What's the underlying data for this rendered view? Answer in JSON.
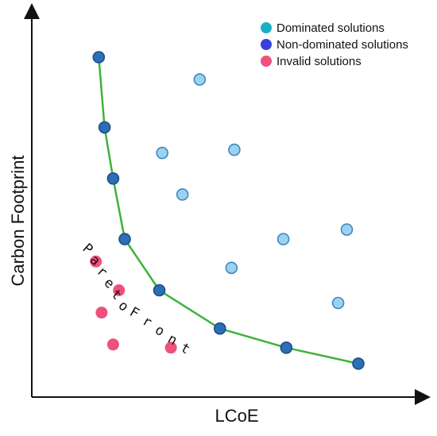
{
  "chart_data": {
    "type": "scatter",
    "title": "",
    "xlabel": "LCoE",
    "ylabel": "Carbon Footprint",
    "grid": false,
    "legend_position": "top-right",
    "front_label": "Pareto Front",
    "series": [
      {
        "name": "Dominated solutions",
        "legend_color": "#1ab0c4",
        "color": "#9cd2ee",
        "stroke": "#3e88c3",
        "points": [
          [
            0.45,
            0.93
          ],
          [
            0.32,
            0.7
          ],
          [
            0.57,
            0.71
          ],
          [
            0.39,
            0.57
          ],
          [
            0.74,
            0.43
          ],
          [
            0.96,
            0.46
          ],
          [
            0.56,
            0.34
          ],
          [
            0.93,
            0.23
          ]
        ]
      },
      {
        "name": "Non-dominated solutions",
        "legend_color": "#3b3fdc",
        "color": "#2c6fb6",
        "stroke": "#1c4f8a",
        "points": [
          [
            0.1,
            1.0
          ],
          [
            0.12,
            0.78
          ],
          [
            0.15,
            0.62
          ],
          [
            0.19,
            0.43
          ],
          [
            0.31,
            0.27
          ],
          [
            0.52,
            0.15
          ],
          [
            0.75,
            0.09
          ],
          [
            1.0,
            0.04
          ]
        ]
      },
      {
        "name": "Invalid solutions",
        "legend_color": "#f0507c",
        "color": "#f0507c",
        "stroke": "#f0507c",
        "points": [
          [
            0.09,
            0.36
          ],
          [
            0.17,
            0.27
          ],
          [
            0.11,
            0.2
          ],
          [
            0.15,
            0.1
          ],
          [
            0.35,
            0.09
          ]
        ]
      }
    ],
    "pareto_line_color": "#3eb23a"
  }
}
